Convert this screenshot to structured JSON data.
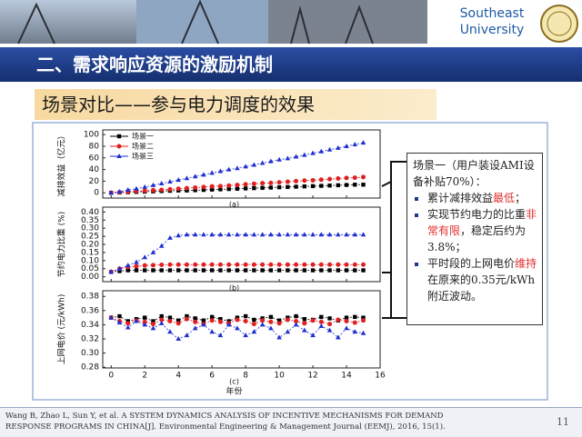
{
  "header": {
    "university": [
      "Southeast",
      "University"
    ]
  },
  "slide_title": "二、需求响应资源的激励机制",
  "subtitle": "场景对比——参与电力调度的效果",
  "chart_data": [
    {
      "type": "line",
      "ylabel": "减排效益（亿元）",
      "panel": "(a)",
      "legend": "upper left",
      "xlim": [
        -0.5,
        16
      ],
      "ylim": [
        -9,
        108
      ],
      "yticks": [
        0,
        20,
        40,
        60,
        80,
        100
      ],
      "x": [
        0,
        0.5,
        1,
        1.5,
        2,
        2.5,
        3,
        3.5,
        4,
        4.5,
        5,
        5.5,
        6,
        6.5,
        7,
        7.5,
        8,
        8.5,
        9,
        9.5,
        10,
        10.5,
        11,
        11.5,
        12,
        12.5,
        13,
        13.5,
        14,
        14.5,
        15
      ],
      "series": [
        {
          "name": "场景一",
          "color": "#000000",
          "marker": "square",
          "values": [
            0,
            0.5,
            1,
            1.5,
            2,
            2.5,
            3,
            3.5,
            4,
            4,
            4.5,
            5,
            5.5,
            6,
            6.5,
            7,
            7.5,
            8,
            8.5,
            9,
            9.5,
            10,
            10.5,
            11,
            11.5,
            12,
            12.5,
            13,
            13.5,
            14,
            14
          ]
        },
        {
          "name": "场景二",
          "color": "#e02020",
          "marker": "circle",
          "values": [
            0,
            1,
            2,
            3,
            3.5,
            4.5,
            5,
            6,
            7,
            8,
            9,
            10,
            11,
            11.5,
            12.5,
            13.5,
            14.5,
            15.5,
            16.5,
            17,
            18,
            19,
            20,
            21,
            21.5,
            22.5,
            23.5,
            24.5,
            25.5,
            26,
            27
          ]
        },
        {
          "name": "场景三",
          "color": "#1f2fd0",
          "marker": "triangle",
          "values": [
            0,
            2,
            5,
            7,
            10,
            13,
            16,
            19,
            22,
            25,
            28,
            31,
            34,
            37,
            40,
            42,
            45,
            48,
            51,
            54,
            57,
            59,
            62,
            65,
            68,
            71,
            74,
            77,
            80,
            83,
            86
          ]
        }
      ]
    },
    {
      "type": "line",
      "ylabel": "节约电力比重 (%)",
      "panel": "(b)",
      "xlim": [
        -0.5,
        16
      ],
      "ylim": [
        -0.03,
        0.43
      ],
      "yticks": [
        {
          "value": 0,
          "label": "0.00"
        },
        0.05,
        {
          "value": 0.1,
          "label": "0.10"
        },
        0.15,
        {
          "value": 0.2,
          "label": "0.20"
        },
        0.25,
        {
          "value": 0.3,
          "label": "0.30"
        },
        0.35,
        {
          "value": 0.4,
          "label": "0.40"
        }
      ],
      "x": [
        0,
        0.5,
        1,
        1.5,
        2,
        2.5,
        3,
        3.5,
        4,
        4.5,
        5,
        5.5,
        6,
        6.5,
        7,
        7.5,
        8,
        8.5,
        9,
        9.5,
        10,
        10.5,
        11,
        11.5,
        12,
        12.5,
        13,
        13.5,
        14,
        14.5,
        15
      ],
      "series": [
        {
          "color": "#000000",
          "marker": "square",
          "values": [
            0.03,
            0.035,
            0.04,
            0.04,
            0.04,
            0.04,
            0.04,
            0.04,
            0.04,
            0.04,
            0.04,
            0.04,
            0.04,
            0.04,
            0.04,
            0.04,
            0.04,
            0.04,
            0.04,
            0.04,
            0.04,
            0.04,
            0.04,
            0.04,
            0.04,
            0.04,
            0.04,
            0.04,
            0.04,
            0.04,
            0.04
          ]
        },
        {
          "color": "#e02020",
          "marker": "circle",
          "values": [
            0.03,
            0.05,
            0.06,
            0.065,
            0.07,
            0.072,
            0.074,
            0.075,
            0.075,
            0.075,
            0.075,
            0.075,
            0.075,
            0.075,
            0.075,
            0.075,
            0.075,
            0.075,
            0.075,
            0.075,
            0.075,
            0.075,
            0.075,
            0.075,
            0.075,
            0.075,
            0.075,
            0.075,
            0.075,
            0.075,
            0.075
          ]
        },
        {
          "color": "#1f2fd0",
          "marker": "triangle",
          "values": [
            0.03,
            0.05,
            0.07,
            0.09,
            0.12,
            0.15,
            0.19,
            0.24,
            0.255,
            0.26,
            0.26,
            0.26,
            0.26,
            0.26,
            0.26,
            0.26,
            0.26,
            0.26,
            0.26,
            0.26,
            0.26,
            0.26,
            0.26,
            0.26,
            0.26,
            0.26,
            0.26,
            0.26,
            0.26,
            0.26,
            0.26
          ]
        }
      ]
    },
    {
      "type": "line",
      "ylabel": "上网电价 (元/kWh)",
      "panel": "(c)",
      "xlabel": "年份",
      "xlim": [
        -0.5,
        16
      ],
      "ylim": [
        0.279,
        0.388
      ],
      "xticks": [
        0,
        2,
        4,
        6,
        8,
        10,
        12,
        14,
        16
      ],
      "yticks": [
        0.28,
        {
          "value": 0.3,
          "label": "0.30"
        },
        0.32,
        0.34,
        0.36,
        0.38
      ],
      "x": [
        0,
        0.5,
        1,
        1.5,
        2,
        2.5,
        3,
        3.5,
        4,
        4.5,
        5,
        5.5,
        6,
        6.5,
        7,
        7.5,
        8,
        8.5,
        9,
        9.5,
        10,
        10.5,
        11,
        11.5,
        12,
        12.5,
        13,
        13.5,
        14,
        14.5,
        15
      ],
      "series": [
        {
          "color": "#000000",
          "marker": "square",
          "values": [
            0.35,
            0.352,
            0.345,
            0.348,
            0.35,
            0.345,
            0.352,
            0.35,
            0.346,
            0.352,
            0.349,
            0.346,
            0.351,
            0.348,
            0.345,
            0.35,
            0.352,
            0.347,
            0.349,
            0.351,
            0.346,
            0.35,
            0.352,
            0.348,
            0.347,
            0.351,
            0.349,
            0.346,
            0.35,
            0.351,
            0.35
          ]
        },
        {
          "color": "#e02020",
          "marker": "circle",
          "values": [
            0.35,
            0.345,
            0.342,
            0.346,
            0.344,
            0.341,
            0.347,
            0.345,
            0.342,
            0.348,
            0.344,
            0.341,
            0.346,
            0.344,
            0.342,
            0.347,
            0.345,
            0.341,
            0.346,
            0.344,
            0.342,
            0.347,
            0.345,
            0.342,
            0.346,
            0.344,
            0.341,
            0.347,
            0.345,
            0.343,
            0.346
          ]
        },
        {
          "color": "#1f2fd0",
          "marker": "triangle",
          "values": [
            0.35,
            0.343,
            0.336,
            0.345,
            0.34,
            0.335,
            0.342,
            0.33,
            0.32,
            0.325,
            0.335,
            0.34,
            0.33,
            0.325,
            0.34,
            0.335,
            0.325,
            0.33,
            0.34,
            0.335,
            0.322,
            0.33,
            0.34,
            0.332,
            0.325,
            0.338,
            0.332,
            0.322,
            0.335,
            0.33,
            0.328
          ]
        }
      ]
    }
  ],
  "callout": {
    "heading": "场景一（用户装设AMI设备补贴70%）：",
    "bullets": [
      {
        "parts": [
          {
            "text": "累计减排效益"
          },
          {
            "text": "最低",
            "color": "#e0302f"
          },
          {
            "text": "；"
          }
        ]
      },
      {
        "parts": [
          {
            "text": "实现节约电力的比重"
          },
          {
            "text": "非常有限",
            "color": "#e0302f"
          },
          {
            "text": "，稳定后约为3.8%；"
          }
        ]
      },
      {
        "parts": [
          {
            "text": "平时段的上网电价"
          },
          {
            "text": "维持",
            "color": "#e0302f"
          },
          {
            "text": "在原来的0.35元/kWh附近波动。"
          }
        ]
      }
    ]
  },
  "footer": {
    "citation": [
      "Wang B, Zhao L, Sun Y, et al. A SYSTEM DYNAMICS ANALYSIS OF INCENTIVE MECHANISMS FOR DEMAND",
      "RESPONSE PROGRAMS IN CHINA[J]. Environmental Engineering & Management Journal (EEMJ), 2016, 15(1)."
    ],
    "page": "11"
  }
}
